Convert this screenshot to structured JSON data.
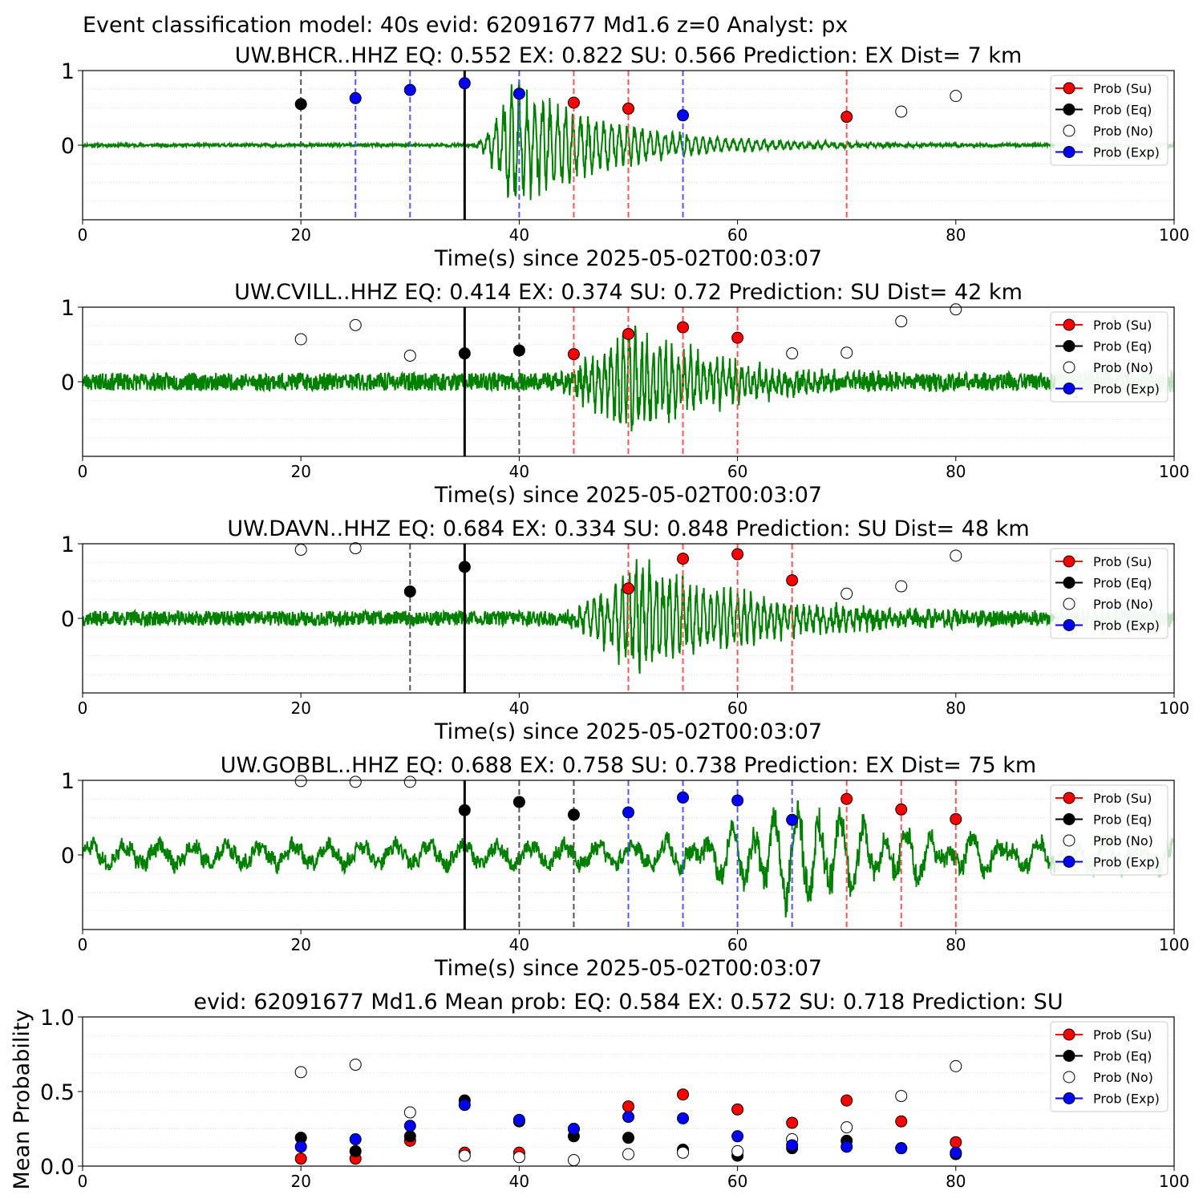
{
  "suptitle": "Event classification model: 40s evid: 62091677 Md1.6 z=0 Analyst: px",
  "legend_entries": [
    {
      "label": "Prob (Su)",
      "color": "#ff0000",
      "edge": "#000000"
    },
    {
      "label": "Prob (Eq)",
      "color": "#000000",
      "edge": "#000000"
    },
    {
      "label": "Prob (No)",
      "color": "#ffffff",
      "edge": "#000000"
    },
    {
      "label": "Prob (Exp)",
      "color": "#0000ff",
      "edge": "#000000"
    }
  ],
  "colors": {
    "waveform": "#008000",
    "su": "#ff0000",
    "eq": "#000000",
    "no": "#ffffff",
    "exp": "#0000ff",
    "grid": "#d9d9d9"
  },
  "chart_data": [
    {
      "type": "line",
      "title": "UW.BHCR..HHZ   EQ: 0.552  EX: 0.822  SU: 0.566   Prediction: EX    Dist= 7 km",
      "xlabel": "Time(s) since 2025-05-02T00:03:07",
      "ylabel": "",
      "xlim": [
        0,
        100
      ],
      "ylim": [
        -1,
        1
      ],
      "xticks": [
        "0",
        "20",
        "40",
        "60",
        "80",
        "100"
      ],
      "yticks": [
        {
          "v": 0,
          "label": "0"
        },
        {
          "v": 1,
          "label": "1"
        }
      ],
      "grid": "horizontal",
      "legend": "top-right",
      "origin_time": 35,
      "waveform": {
        "onset": 35.5,
        "peak_time": 39.5,
        "decay": 9,
        "noise": 0.02,
        "amp": 0.95,
        "freq": 1.3,
        "seed": 11,
        "shade_from": 89
      },
      "points": [
        {
          "t": 20,
          "p": 0.55,
          "c": "eq",
          "line": true
        },
        {
          "t": 25,
          "p": 0.63,
          "c": "exp",
          "line": true
        },
        {
          "t": 30,
          "p": 0.74,
          "c": "exp",
          "line": true
        },
        {
          "t": 35,
          "p": 0.83,
          "c": "exp",
          "line": false
        },
        {
          "t": 40,
          "p": 0.69,
          "c": "exp",
          "line": true
        },
        {
          "t": 45,
          "p": 0.57,
          "c": "su",
          "line": true
        },
        {
          "t": 50,
          "p": 0.49,
          "c": "su",
          "line": true
        },
        {
          "t": 55,
          "p": 0.4,
          "c": "exp",
          "line": true
        },
        {
          "t": 70,
          "p": 0.38,
          "c": "su",
          "line": true
        },
        {
          "t": 75,
          "p": 0.45,
          "c": "no",
          "line": false
        },
        {
          "t": 80,
          "p": 0.66,
          "c": "no",
          "line": false
        }
      ]
    },
    {
      "type": "line",
      "title": "UW.CVILL..HHZ   EQ: 0.414  EX: 0.374  SU: 0.72   Prediction: SU    Dist= 42 km",
      "xlabel": "Time(s) since 2025-05-02T00:03:07",
      "ylabel": "",
      "xlim": [
        0,
        100
      ],
      "ylim": [
        -1,
        1
      ],
      "xticks": [
        "0",
        "20",
        "40",
        "60",
        "80",
        "100"
      ],
      "yticks": [
        {
          "v": 0,
          "label": "0"
        },
        {
          "v": 1,
          "label": "1"
        }
      ],
      "grid": "horizontal",
      "legend": "top-right",
      "origin_time": 35,
      "waveform": {
        "onset": 42,
        "peak_time": 50,
        "decay": 8,
        "noise": 0.12,
        "amp": 0.85,
        "freq": 1.6,
        "seed": 23,
        "shade_from": 89
      },
      "points": [
        {
          "t": 20,
          "p": 0.57,
          "c": "no",
          "line": false
        },
        {
          "t": 25,
          "p": 0.76,
          "c": "no",
          "line": false
        },
        {
          "t": 30,
          "p": 0.35,
          "c": "no",
          "line": false
        },
        {
          "t": 35,
          "p": 0.38,
          "c": "eq",
          "line": false
        },
        {
          "t": 40,
          "p": 0.42,
          "c": "eq",
          "line": true
        },
        {
          "t": 45,
          "p": 0.37,
          "c": "su",
          "line": true
        },
        {
          "t": 50,
          "p": 0.64,
          "c": "su",
          "line": true
        },
        {
          "t": 55,
          "p": 0.73,
          "c": "su",
          "line": true
        },
        {
          "t": 60,
          "p": 0.59,
          "c": "su",
          "line": true
        },
        {
          "t": 65,
          "p": 0.38,
          "c": "no",
          "line": false
        },
        {
          "t": 70,
          "p": 0.39,
          "c": "no",
          "line": false
        },
        {
          "t": 75,
          "p": 0.81,
          "c": "no",
          "line": false
        },
        {
          "t": 80,
          "p": 0.97,
          "c": "no",
          "line": false
        }
      ]
    },
    {
      "type": "line",
      "title": "UW.DAVN..HHZ   EQ: 0.684  EX: 0.334  SU: 0.848   Prediction: SU    Dist= 48 km",
      "xlabel": "Time(s) since 2025-05-02T00:03:07",
      "ylabel": "",
      "xlim": [
        0,
        100
      ],
      "ylim": [
        -1,
        1
      ],
      "xticks": [
        "0",
        "20",
        "40",
        "60",
        "80",
        "100"
      ],
      "yticks": [
        {
          "v": 0,
          "label": "0"
        },
        {
          "v": 1,
          "label": "1"
        }
      ],
      "grid": "horizontal",
      "legend": "top-right",
      "origin_time": 35,
      "waveform": {
        "onset": 43,
        "peak_time": 51,
        "decay": 10,
        "noise": 0.1,
        "amp": 0.9,
        "freq": 1.5,
        "seed": 37,
        "shade_from": 89
      },
      "points": [
        {
          "t": 20,
          "p": 0.92,
          "c": "no",
          "line": false
        },
        {
          "t": 25,
          "p": 0.94,
          "c": "no",
          "line": false
        },
        {
          "t": 30,
          "p": 0.36,
          "c": "eq",
          "line": true
        },
        {
          "t": 35,
          "p": 0.69,
          "c": "eq",
          "line": false
        },
        {
          "t": 50,
          "p": 0.4,
          "c": "su",
          "line": true
        },
        {
          "t": 55,
          "p": 0.8,
          "c": "su",
          "line": true
        },
        {
          "t": 60,
          "p": 0.86,
          "c": "su",
          "line": true
        },
        {
          "t": 65,
          "p": 0.51,
          "c": "su",
          "line": true
        },
        {
          "t": 70,
          "p": 0.33,
          "c": "no",
          "line": false
        },
        {
          "t": 75,
          "p": 0.43,
          "c": "no",
          "line": false
        },
        {
          "t": 80,
          "p": 0.84,
          "c": "no",
          "line": false
        }
      ]
    },
    {
      "type": "line",
      "title": "UW.GOBBL..HHZ   EQ: 0.688  EX: 0.758  SU: 0.738   Prediction: EX    Dist= 75 km",
      "xlabel": "Time(s) since 2025-05-02T00:03:07",
      "ylabel": "",
      "xlim": [
        0,
        100
      ],
      "ylim": [
        -1,
        1
      ],
      "xticks": [
        "0",
        "20",
        "40",
        "60",
        "80",
        "100"
      ],
      "yticks": [
        {
          "v": 0,
          "label": "0"
        },
        {
          "v": 1,
          "label": "1"
        }
      ],
      "grid": "horizontal",
      "legend": "top-right",
      "origin_time": 35,
      "waveform": {
        "onset": 49,
        "peak_time": 66,
        "decay": 10,
        "noise": 0.1,
        "amp": 0.8,
        "freq": 0.45,
        "seed": 51,
        "shade_from": 89,
        "swell": 0.12
      },
      "points": [
        {
          "t": 20,
          "p": 0.99,
          "c": "no",
          "line": false
        },
        {
          "t": 25,
          "p": 0.98,
          "c": "no",
          "line": false
        },
        {
          "t": 30,
          "p": 0.98,
          "c": "no",
          "line": false
        },
        {
          "t": 35,
          "p": 0.6,
          "c": "eq",
          "line": false
        },
        {
          "t": 40,
          "p": 0.71,
          "c": "eq",
          "line": true
        },
        {
          "t": 45,
          "p": 0.54,
          "c": "eq",
          "line": true
        },
        {
          "t": 50,
          "p": 0.57,
          "c": "exp",
          "line": true
        },
        {
          "t": 55,
          "p": 0.77,
          "c": "exp",
          "line": true
        },
        {
          "t": 60,
          "p": 0.73,
          "c": "exp",
          "line": true
        },
        {
          "t": 65,
          "p": 0.47,
          "c": "exp",
          "line": true
        },
        {
          "t": 70,
          "p": 0.75,
          "c": "su",
          "line": true
        },
        {
          "t": 75,
          "p": 0.61,
          "c": "su",
          "line": true
        },
        {
          "t": 80,
          "p": 0.48,
          "c": "su",
          "line": true
        }
      ]
    },
    {
      "type": "scatter",
      "title": "evid: 62091677  Md1.6   Mean prob:   EQ: 0.584  EX: 0.572  SU: 0.718   Prediction: SU",
      "xlabel": "",
      "ylabel": "Mean Probability",
      "xlim": [
        0,
        100
      ],
      "ylim": [
        0,
        1
      ],
      "xticks": [
        "0",
        "20",
        "40",
        "60",
        "80",
        "100"
      ],
      "yticks": [
        {
          "v": 0,
          "label": "0.0"
        },
        {
          "v": 0.5,
          "label": "0.5"
        },
        {
          "v": 1,
          "label": "1.0"
        }
      ],
      "grid": "horizontal",
      "legend": "top-right",
      "x": [
        20,
        25,
        30,
        35,
        40,
        45,
        50,
        55,
        60,
        65,
        70,
        75,
        80
      ],
      "series": [
        {
          "name": "Prob (Su)",
          "c": "su",
          "values": [
            0.05,
            0.05,
            0.17,
            0.09,
            0.09,
            0.25,
            0.4,
            0.48,
            0.38,
            0.29,
            0.44,
            0.3,
            0.16
          ]
        },
        {
          "name": "Prob (Eq)",
          "c": "eq",
          "values": [
            0.19,
            0.1,
            0.2,
            0.44,
            0.3,
            0.2,
            0.19,
            0.11,
            0.07,
            0.12,
            0.17,
            0.12,
            0.08
          ]
        },
        {
          "name": "Prob (No)",
          "c": "no",
          "values": [
            0.63,
            0.68,
            0.36,
            0.07,
            0.06,
            0.04,
            0.08,
            0.09,
            0.1,
            0.18,
            0.26,
            0.47,
            0.67
          ]
        },
        {
          "name": "Prob (Exp)",
          "c": "exp",
          "values": [
            0.13,
            0.18,
            0.27,
            0.41,
            0.31,
            0.25,
            0.33,
            0.32,
            0.2,
            0.14,
            0.13,
            0.12,
            0.09
          ]
        }
      ]
    }
  ]
}
